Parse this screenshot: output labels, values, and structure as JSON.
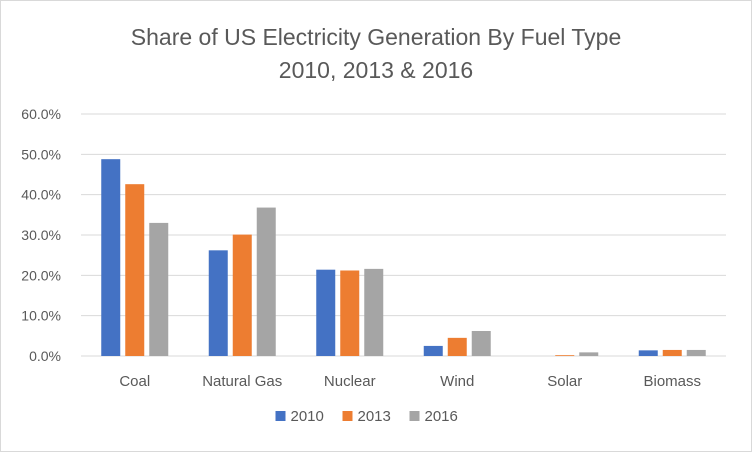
{
  "chart_data": {
    "type": "bar",
    "title": "Share of US Electricity Generation By Fuel Type",
    "subtitle": "2010, 2013 & 2016",
    "xlabel": "",
    "ylabel": "",
    "categories": [
      "Coal",
      "Natural Gas",
      "Nuclear",
      "Wind",
      "Solar",
      "Biomass"
    ],
    "series": [
      {
        "name": "2010",
        "color": "#4472c4",
        "values": [
          48.8,
          26.2,
          21.4,
          2.5,
          0.0,
          1.4
        ]
      },
      {
        "name": "2013",
        "color": "#ed7d31",
        "values": [
          42.6,
          30.1,
          21.2,
          4.5,
          0.2,
          1.5
        ]
      },
      {
        "name": "2016",
        "color": "#a5a5a5",
        "values": [
          33.0,
          36.8,
          21.6,
          6.2,
          0.9,
          1.5
        ]
      }
    ],
    "ylim": [
      0,
      60
    ],
    "yticks": [
      "0.0%",
      "10.0%",
      "20.0%",
      "30.0%",
      "40.0%",
      "50.0%",
      "60.0%"
    ],
    "grid": true,
    "legend_position": "bottom"
  }
}
